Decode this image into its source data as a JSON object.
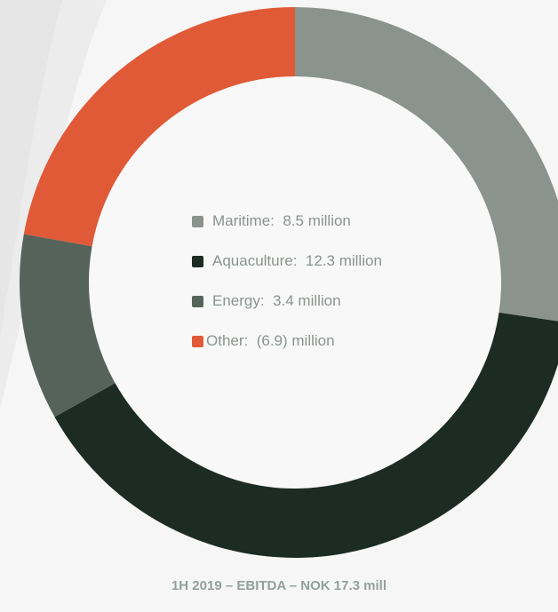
{
  "chart_data": {
    "type": "pie",
    "variant": "donut",
    "legend_placement": "center",
    "title": "1H 2019 – EBITDA – NOK 17.3 mill",
    "slices": [
      {
        "label": "Maritime",
        "value": 8.5,
        "value_label": "8.5 million",
        "color": "#8a938e"
      },
      {
        "label": "Aquaculture",
        "value": 12.3,
        "value_label": "12.3 million",
        "color": "#1c2b23"
      },
      {
        "label": "Energy",
        "value": 3.4,
        "value_label": "3.4 million",
        "color": "#56635b"
      },
      {
        "label": "Other",
        "value": 6.9,
        "value_label": "(6.9) million",
        "color": "#e05a38"
      }
    ]
  }
}
